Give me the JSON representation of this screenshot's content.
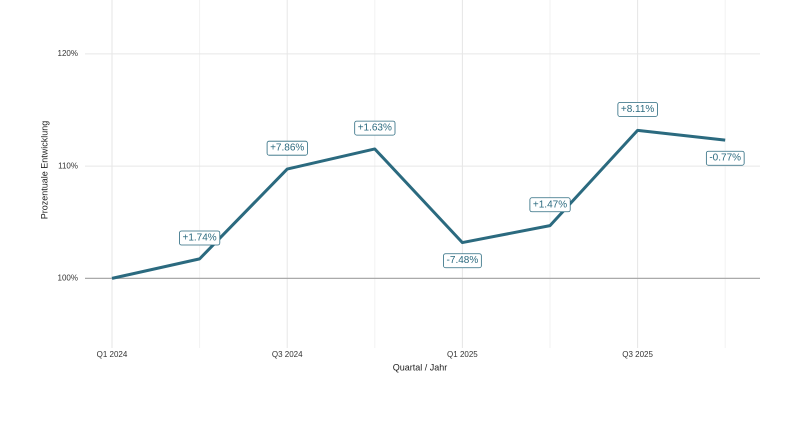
{
  "chart_data": {
    "type": "line",
    "x_label": "Quartal / Jahr",
    "y_label": "Prozentuale Entwicklung",
    "categories": [
      "Q1 2024",
      null,
      "Q3 2024",
      null,
      "Q1 2025",
      null,
      "Q3 2025",
      null
    ],
    "series": [
      {
        "color": "#2b6a7f",
        "values": [
          100,
          101.74,
          109.74,
          111.53,
          103.19,
          104.7,
          113.19,
          112.32
        ],
        "change_labels": [
          null,
          "+1.74%",
          "+7.86%",
          "+1.63%",
          "-7.48%",
          "+1.47%",
          "+8.11%",
          "-0.77%"
        ]
      }
    ],
    "ylim": [
      93.8,
      124.8
    ],
    "yticks": [
      {
        "value": 100,
        "label": "100%"
      },
      {
        "value": 110,
        "label": "110%"
      },
      {
        "value": 120,
        "label": "120%"
      }
    ],
    "reference_line": 100,
    "grid": true
  }
}
